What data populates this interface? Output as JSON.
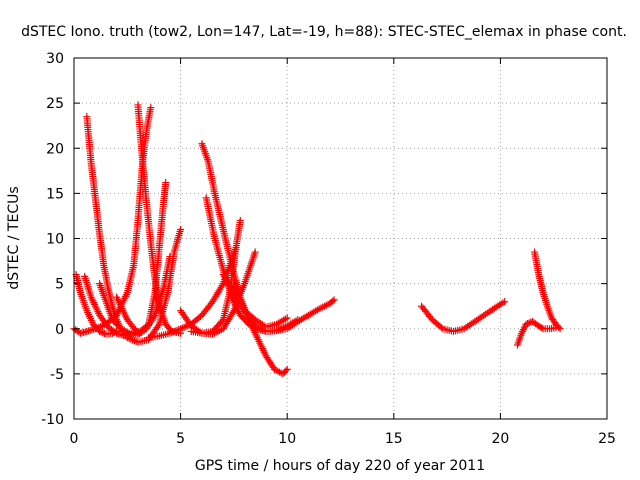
{
  "chart_data": {
    "type": "scatter",
    "title": "dSTEC Iono. truth (tow2, Lon=147, Lat=-19, h=88): STEC-STEC_elemax in phase cont.",
    "xlabel": "GPS time / hours of day 220 of year 2011",
    "ylabel": "dSTEC  / TECUs",
    "xlim": [
      0,
      25
    ],
    "ylim": [
      -10,
      30
    ],
    "xticks": [
      0,
      5,
      10,
      15,
      20,
      25
    ],
    "yticks": [
      -10,
      -5,
      0,
      5,
      10,
      15,
      20,
      25,
      30
    ],
    "grid": true,
    "marker": "plus",
    "colors": {
      "series": "#ff0000",
      "grid": "#a0a0a0",
      "axis": "#000000"
    },
    "series": [
      {
        "x": [
          0.6,
          0.8,
          1.0,
          1.2,
          1.4,
          1.6,
          1.8,
          2.0,
          2.2,
          2.4
        ],
        "y": [
          23.5,
          18.5,
          14.5,
          10.5,
          7.0,
          4.5,
          2.5,
          1.0,
          0.0,
          -0.5
        ]
      },
      {
        "x": [
          0.1,
          0.3,
          0.6,
          0.9,
          1.2,
          1.5,
          1.8,
          2.0
        ],
        "y": [
          6.0,
          4.0,
          2.0,
          0.5,
          -0.3,
          -0.6,
          -0.5,
          -0.3
        ]
      },
      {
        "x": [
          0.0,
          0.3,
          0.6,
          1.0,
          1.5,
          2.0,
          2.5,
          2.8,
          3.0,
          3.2,
          3.4,
          3.6
        ],
        "y": [
          0.0,
          -0.5,
          -0.3,
          0.0,
          0.5,
          1.5,
          4.0,
          7.0,
          12.0,
          18.0,
          22.0,
          24.5
        ]
      },
      {
        "x": [
          3.0,
          3.2,
          3.4,
          3.6,
          3.8,
          4.0,
          4.3,
          4.6,
          5.0
        ],
        "y": [
          24.8,
          19.0,
          14.0,
          9.5,
          5.5,
          2.5,
          0.5,
          -0.3,
          -0.5
        ]
      },
      {
        "x": [
          0.5,
          0.8,
          1.2,
          1.6,
          2.0,
          2.4,
          2.8,
          3.0
        ],
        "y": [
          5.8,
          3.5,
          1.5,
          0.2,
          -0.5,
          -0.8,
          -0.5,
          -0.3
        ]
      },
      {
        "x": [
          1.2,
          1.5,
          1.8,
          2.2,
          2.6,
          3.0,
          3.4,
          3.8,
          4.2,
          4.5
        ],
        "y": [
          5.0,
          3.0,
          1.0,
          0.0,
          -0.5,
          -0.7,
          0.0,
          1.5,
          4.5,
          8.0
        ]
      },
      {
        "x": [
          2.5,
          3.0,
          3.5,
          4.0,
          4.4,
          4.7,
          5.0
        ],
        "y": [
          -1.0,
          -1.5,
          -1.2,
          0.5,
          4.0,
          8.5,
          11.0
        ]
      },
      {
        "x": [
          2.0,
          2.5,
          3.0,
          3.5,
          3.8,
          4.0,
          4.2,
          4.3
        ],
        "y": [
          3.5,
          1.0,
          -0.5,
          0.5,
          4.0,
          9.0,
          14.0,
          16.2
        ]
      },
      {
        "x": [
          3.5,
          4.0,
          4.5,
          5.0,
          5.5,
          6.0,
          6.5,
          7.0,
          7.3,
          7.6
        ],
        "y": [
          -1.0,
          -0.8,
          -0.5,
          0.0,
          0.5,
          1.5,
          3.0,
          5.0,
          7.0,
          9.0
        ]
      },
      {
        "x": [
          6.0,
          6.3,
          6.6,
          7.0,
          7.4,
          7.8,
          8.2,
          8.6,
          9.0,
          9.4,
          9.8,
          10.0
        ],
        "y": [
          20.5,
          18.5,
          15.0,
          11.0,
          7.0,
          3.5,
          1.0,
          -1.0,
          -3.0,
          -4.5,
          -5.0,
          -4.5
        ]
      },
      {
        "x": [
          6.2,
          6.6,
          7.0,
          7.4,
          7.8,
          8.2,
          8.6,
          9.0,
          9.5,
          10.0,
          10.5,
          11.0,
          11.5,
          12.0,
          12.2
        ],
        "y": [
          14.5,
          10.0,
          6.5,
          3.5,
          1.5,
          0.5,
          0.0,
          -0.3,
          -0.2,
          0.0,
          0.8,
          1.5,
          2.2,
          2.8,
          3.2
        ]
      },
      {
        "x": [
          5.5,
          6.0,
          6.5,
          7.0,
          7.3,
          7.6,
          7.8
        ],
        "y": [
          -0.3,
          -0.5,
          -0.3,
          1.0,
          4.0,
          9.0,
          12.0
        ]
      },
      {
        "x": [
          5.0,
          5.5,
          6.0,
          6.5,
          7.0,
          7.5,
          8.0,
          8.5
        ],
        "y": [
          2.0,
          0.3,
          -0.5,
          -0.6,
          0.0,
          2.0,
          5.0,
          8.5
        ]
      },
      {
        "x": [
          7.5,
          8.0,
          8.5,
          9.0,
          9.5,
          10.0,
          10.5
        ],
        "y": [
          5.0,
          2.0,
          0.3,
          -0.3,
          -0.2,
          0.3,
          1.0
        ]
      },
      {
        "x": [
          7.0,
          7.5,
          8.0,
          8.5,
          9.0,
          9.5,
          10.0
        ],
        "y": [
          6.0,
          4.0,
          2.0,
          1.0,
          0.2,
          0.5,
          1.2
        ]
      },
      {
        "x": [
          16.3,
          16.8,
          17.3,
          17.8,
          18.3,
          18.8,
          19.3,
          19.8,
          20.2
        ],
        "y": [
          2.5,
          1.0,
          0.0,
          -0.3,
          0.0,
          0.8,
          1.6,
          2.4,
          3.0
        ]
      },
      {
        "x": [
          20.8,
          21.0,
          21.2,
          21.5,
          21.8,
          22.0,
          22.3,
          22.6
        ],
        "y": [
          -1.8,
          -0.5,
          0.5,
          0.8,
          0.3,
          0.0,
          0.0,
          0.1
        ]
      },
      {
        "x": [
          21.6,
          21.8,
          22.0,
          22.2,
          22.4,
          22.6,
          22.8
        ],
        "y": [
          8.5,
          6.0,
          4.0,
          2.5,
          1.2,
          0.5,
          0.0
        ]
      }
    ]
  }
}
